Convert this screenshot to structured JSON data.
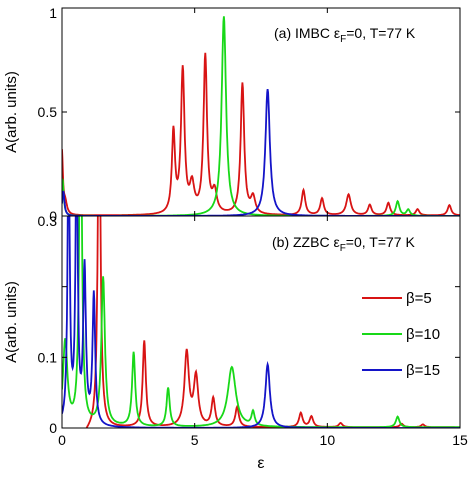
{
  "chart_data": [
    {
      "type": "line",
      "panel": "a",
      "annotation": {
        "label": "(a) IMBC ε",
        "sub": "F",
        "rest": "=0, T=77 K"
      },
      "ylabel": "A(arb. units)",
      "xlim": [
        0,
        15
      ],
      "ylim": [
        0,
        1.0
      ],
      "yticks": [
        0,
        0.5,
        1
      ],
      "ytick_labels": [
        "0",
        "0.5",
        "1"
      ],
      "xticks": [
        0,
        5,
        10,
        15
      ],
      "series": [
        {
          "name": "β=5",
          "color": "#d81414",
          "base": 0.002,
          "peaks": [
            {
              "x": 0.0,
              "h": 0.3,
              "w": 0.04
            },
            {
              "x": 0.12,
              "h": 0.06,
              "w": 0.08
            },
            {
              "x": 4.2,
              "h": 0.39,
              "w": 0.07
            },
            {
              "x": 4.55,
              "h": 0.69,
              "w": 0.08
            },
            {
              "x": 4.9,
              "h": 0.13,
              "w": 0.1
            },
            {
              "x": 5.4,
              "h": 0.76,
              "w": 0.08
            },
            {
              "x": 5.75,
              "h": 0.1,
              "w": 0.1
            },
            {
              "x": 6.8,
              "h": 0.63,
              "w": 0.08
            },
            {
              "x": 7.2,
              "h": 0.08,
              "w": 0.1
            },
            {
              "x": 9.1,
              "h": 0.12,
              "w": 0.08
            },
            {
              "x": 9.8,
              "h": 0.08,
              "w": 0.08
            },
            {
              "x": 10.8,
              "h": 0.1,
              "w": 0.1
            },
            {
              "x": 11.6,
              "h": 0.05,
              "w": 0.08
            },
            {
              "x": 12.3,
              "h": 0.06,
              "w": 0.08
            },
            {
              "x": 13.4,
              "h": 0.03,
              "w": 0.08
            },
            {
              "x": 14.6,
              "h": 0.05,
              "w": 0.08
            }
          ]
        },
        {
          "name": "β=10",
          "color": "#18d818",
          "base": 0.0,
          "peaks": [
            {
              "x": 0.02,
              "h": 0.18,
              "w": 0.05
            },
            {
              "x": 6.1,
              "h": 0.96,
              "w": 0.1
            },
            {
              "x": 12.65,
              "h": 0.07,
              "w": 0.08
            },
            {
              "x": 13.05,
              "h": 0.03,
              "w": 0.08
            }
          ]
        },
        {
          "name": "β=15",
          "color": "#1414c8",
          "base": 0.0,
          "peaks": [
            {
              "x": 0.05,
              "h": 0.12,
              "w": 0.05
            },
            {
              "x": 7.75,
              "h": 0.61,
              "w": 0.1
            }
          ]
        }
      ]
    },
    {
      "type": "line",
      "panel": "b",
      "annotation": {
        "label": "(b) ZZBC ε",
        "sub": "F",
        "rest": "=0, T=77 K"
      },
      "ylabel": "A(arb. units)",
      "xlabel": "ε",
      "xlim": [
        0,
        15
      ],
      "ylim": [
        0,
        0.3
      ],
      "yticks": [
        0,
        0.1,
        0.2,
        0.3
      ],
      "ytick_labels": [
        "0",
        "0.1",
        "",
        "0.3"
      ],
      "xticks": [
        0,
        5,
        10,
        15
      ],
      "xtick_labels": [
        "0",
        "5",
        "10",
        "15"
      ],
      "legend": {
        "position": "right",
        "entries": [
          "β=5",
          "β=10",
          "β=15"
        ]
      },
      "series": [
        {
          "name": "β=5",
          "color": "#d81414",
          "base": 0.001,
          "peaks": [
            {
              "x": 1.4,
              "h": 0.5,
              "w": 0.06
            },
            {
              "x": 3.1,
              "h": 0.122,
              "w": 0.07
            },
            {
              "x": 4.7,
              "h": 0.105,
              "w": 0.1
            },
            {
              "x": 5.05,
              "h": 0.07,
              "w": 0.1
            },
            {
              "x": 5.7,
              "h": 0.04,
              "w": 0.08
            },
            {
              "x": 6.6,
              "h": 0.028,
              "w": 0.08
            },
            {
              "x": 9.0,
              "h": 0.02,
              "w": 0.08
            },
            {
              "x": 9.4,
              "h": 0.015,
              "w": 0.08
            },
            {
              "x": 10.5,
              "h": 0.006,
              "w": 0.08
            },
            {
              "x": 12.8,
              "h": 0.005,
              "w": 0.08
            },
            {
              "x": 13.6,
              "h": 0.004,
              "w": 0.08
            }
          ],
          "dips": [
            {
              "x": 0.45,
              "h": 0.06,
              "w": 0.2
            }
          ]
        },
        {
          "name": "β=10",
          "color": "#18d818",
          "base": 0.001,
          "peaks": [
            {
              "x": 0.12,
              "h": 0.12,
              "w": 0.1
            },
            {
              "x": 0.7,
              "h": 0.5,
              "w": 0.06
            },
            {
              "x": 1.55,
              "h": 0.21,
              "w": 0.08
            },
            {
              "x": 2.7,
              "h": 0.105,
              "w": 0.07
            },
            {
              "x": 4.0,
              "h": 0.055,
              "w": 0.07
            },
            {
              "x": 6.4,
              "h": 0.085,
              "w": 0.18
            },
            {
              "x": 7.2,
              "h": 0.02,
              "w": 0.07
            },
            {
              "x": 12.65,
              "h": 0.015,
              "w": 0.08
            }
          ]
        },
        {
          "name": "β=15",
          "color": "#1414c8",
          "base": 0.0,
          "peaks": [
            {
              "x": 0.25,
              "h": 0.4,
              "w": 0.05
            },
            {
              "x": 0.55,
              "h": 0.4,
              "w": 0.05
            },
            {
              "x": 0.85,
              "h": 0.22,
              "w": 0.06
            },
            {
              "x": 1.2,
              "h": 0.185,
              "w": 0.06
            },
            {
              "x": 7.75,
              "h": 0.09,
              "w": 0.1
            }
          ]
        }
      ]
    }
  ]
}
